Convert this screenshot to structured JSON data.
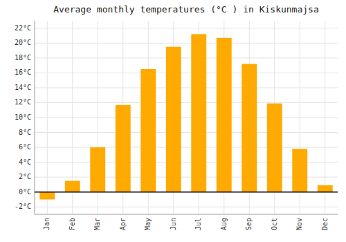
{
  "chart_data": {
    "type": "bar",
    "title": "Average monthly temperatures (°C ) in Kiskunmajsa",
    "categories": [
      "Jan",
      "Feb",
      "Mar",
      "Apr",
      "May",
      "Jun",
      "Jul",
      "Aug",
      "Sep",
      "Oct",
      "Nov",
      "Dec"
    ],
    "values": [
      -1.0,
      1.5,
      6.0,
      11.7,
      16.5,
      19.5,
      21.2,
      20.7,
      17.2,
      11.9,
      5.8,
      0.9
    ],
    "color": "#FFAA00",
    "ylim": [
      -3,
      23
    ],
    "yticks": [
      {
        "value": -2,
        "label": "-2°C"
      },
      {
        "value": 0,
        "label": "0°C"
      },
      {
        "value": 2,
        "label": "2°C"
      },
      {
        "value": 4,
        "label": "4°C"
      },
      {
        "value": 6,
        "label": "6°C"
      },
      {
        "value": 8,
        "label": "8°C"
      },
      {
        "value": 10,
        "label": "10°C"
      },
      {
        "value": 12,
        "label": "12°C"
      },
      {
        "value": 14,
        "label": "14°C"
      },
      {
        "value": 16,
        "label": "16°C"
      },
      {
        "value": 18,
        "label": "18°C"
      },
      {
        "value": 20,
        "label": "20°C"
      },
      {
        "value": 22,
        "label": "22°C"
      }
    ],
    "grid": true
  }
}
